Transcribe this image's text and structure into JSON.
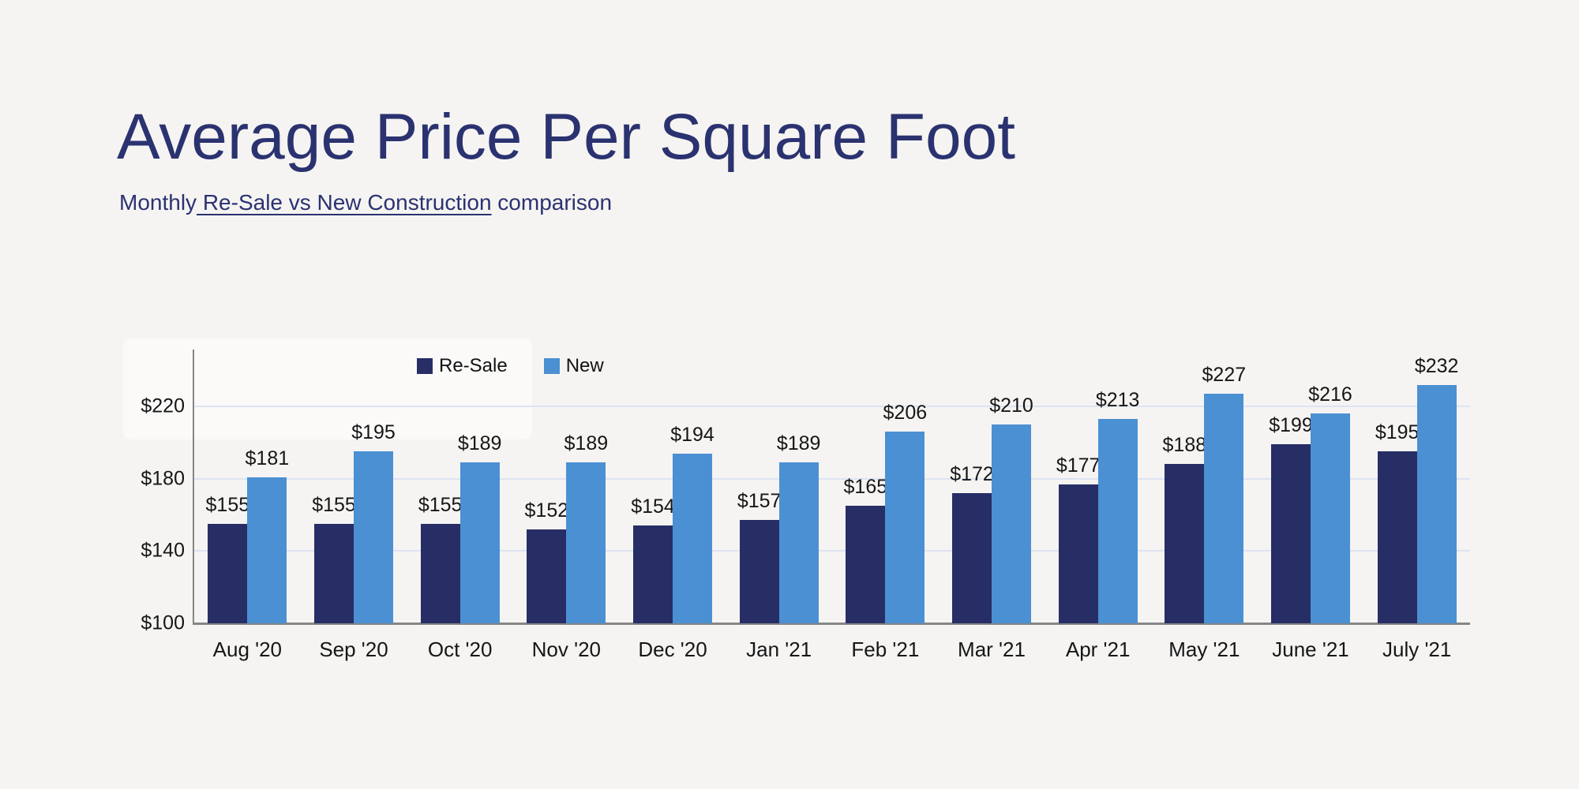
{
  "page": {
    "background_color": "#f5f4f2",
    "accent_navy": "#2b3270"
  },
  "header": {
    "title": "Average Price Per Square Foot",
    "subtitle_prefix": "Monthly",
    "subtitle_underlined": " Re-Sale vs New Construction",
    "subtitle_suffix": " comparison"
  },
  "chart_data": {
    "type": "bar",
    "title": "Average Price Per Square Foot",
    "subtitle": "Monthly Re-Sale vs New Construction comparison",
    "categories": [
      "Aug '20",
      "Sep '20",
      "Oct '20",
      "Nov '20",
      "Dec '20",
      "Jan '21",
      "Feb '21",
      "Mar '21",
      "Apr '21",
      "May '21",
      "June '21",
      "July '21"
    ],
    "series": [
      {
        "name": "Re-Sale",
        "color": "#272e66",
        "values": [
          155,
          155,
          155,
          152,
          154,
          157,
          165,
          172,
          177,
          188,
          199,
          195
        ]
      },
      {
        "name": "New",
        "color": "#4b90d3",
        "values": [
          181,
          195,
          189,
          189,
          194,
          189,
          206,
          210,
          213,
          227,
          216,
          232
        ]
      }
    ],
    "value_prefix": "$",
    "data_labels": true,
    "yticks": [
      100,
      140,
      180,
      220
    ],
    "ylim": [
      100,
      240
    ],
    "grid": true,
    "grid_color": "#dde3f1",
    "axis_color": "#868686",
    "label_color": "#161616",
    "legend_position": "top-center",
    "xlabel": "",
    "ylabel": ""
  }
}
